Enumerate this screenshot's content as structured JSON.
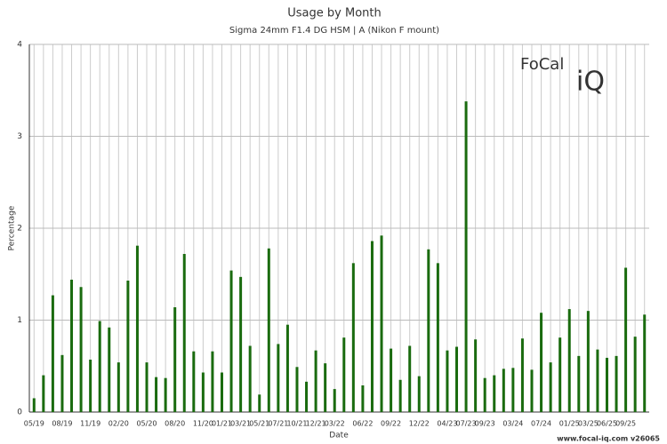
{
  "chart_data": {
    "type": "bar",
    "title": "Usage by Month",
    "subtitle": "Sigma 24mm F1.4 DG HSM | A (Nikon F mount)",
    "x_label": "Date",
    "y_label": "Percentage",
    "footer": "www.focal-iq.com  v26065",
    "logo": {
      "brand": "FoCal",
      "mark": "iQ"
    },
    "categories": [
      "05/19",
      null,
      null,
      "08/19",
      null,
      null,
      "11/19",
      null,
      null,
      "02/20",
      null,
      null,
      "05/20",
      null,
      null,
      "08/20",
      null,
      null,
      "11/20",
      null,
      "01/21",
      null,
      "03/21",
      null,
      "05/21",
      null,
      "07/21",
      null,
      "10/21",
      null,
      "12/21",
      null,
      "03/22",
      null,
      null,
      "06/22",
      null,
      null,
      "09/22",
      null,
      null,
      "12/22",
      null,
      null,
      "04/23",
      null,
      "07/23",
      null,
      "09/23",
      null,
      null,
      "03/24",
      null,
      null,
      "07/24",
      null,
      null,
      "01/25",
      null,
      "03/25",
      null,
      "06/25",
      null,
      "09/25",
      null,
      null
    ],
    "values": [
      0.15,
      0.4,
      1.27,
      0.62,
      1.44,
      1.36,
      0.57,
      0.99,
      0.92,
      0.54,
      1.43,
      1.81,
      0.54,
      0.38,
      0.37,
      1.14,
      1.72,
      0.66,
      0.43,
      0.66,
      0.43,
      1.54,
      1.47,
      0.72,
      0.19,
      1.78,
      0.74,
      0.95,
      0.49,
      0.33,
      0.67,
      0.53,
      0.25,
      0.81,
      1.62,
      0.29,
      1.86,
      1.92,
      0.69,
      0.35,
      0.72,
      0.39,
      1.77,
      1.62,
      0.67,
      0.71,
      3.38,
      0.79,
      0.37,
      0.4,
      0.47,
      0.48,
      0.8,
      0.46,
      1.08,
      0.54,
      0.81,
      1.12,
      0.61,
      1.1,
      0.68,
      0.59,
      0.61,
      1.57,
      0.82,
      1.06
    ],
    "color": "#1a6b0f",
    "ylim": [
      0,
      4
    ],
    "yticks": [
      0,
      1,
      2,
      3,
      4
    ],
    "grid": true
  }
}
